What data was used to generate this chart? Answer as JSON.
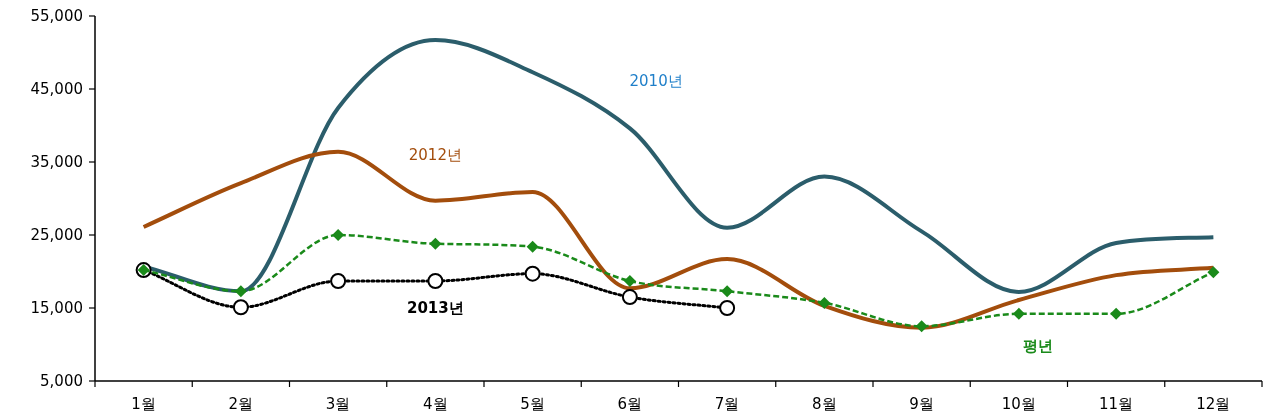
{
  "chart_data": {
    "type": "line",
    "categories": [
      "1월",
      "2월",
      "3월",
      "4월",
      "5월",
      "6월",
      "7월",
      "8월",
      "9월",
      "10월",
      "11월",
      "12월"
    ],
    "ylim": [
      5000,
      55000
    ],
    "yticks": [
      {
        "value": 5000,
        "label": "5,000"
      },
      {
        "value": 15000,
        "label": "15,000"
      },
      {
        "value": 25000,
        "label": "25,000"
      },
      {
        "value": 35000,
        "label": "35,000"
      },
      {
        "value": 45000,
        "label": "45,000"
      },
      {
        "value": 55000,
        "label": "55,000"
      }
    ],
    "grid": false,
    "legend": false,
    "series": [
      {
        "name": "2010년",
        "color": "#2b5d6b",
        "line_style": "solid",
        "marker": "none",
        "values": [
          20700,
          17300,
          42400,
          51700,
          47300,
          39600,
          26000,
          33000,
          25500,
          17200,
          23900,
          24700
        ]
      },
      {
        "name": "2012년",
        "color": "#a34d0c",
        "line_style": "solid",
        "marker": "none",
        "values": [
          26100,
          32100,
          36400,
          29700,
          30900,
          17700,
          21700,
          15300,
          12300,
          16100,
          19500,
          20500
        ]
      },
      {
        "name": "2013년",
        "color": "#000000",
        "line_style": "dotted",
        "marker": "circle",
        "values": [
          20200,
          15100,
          18700,
          18700,
          19700,
          16500,
          15000,
          null,
          null,
          null,
          null,
          null
        ]
      },
      {
        "name": "평년",
        "color": "#1a8a1a",
        "line_style": "dashed",
        "marker": "diamond",
        "values": [
          20200,
          17300,
          25000,
          23800,
          23400,
          18700,
          17300,
          15700,
          12500,
          14200,
          14200,
          19900
        ]
      }
    ]
  }
}
